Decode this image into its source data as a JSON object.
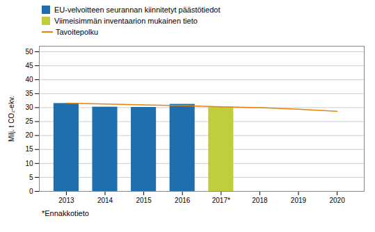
{
  "chart_data": {
    "type": "bar",
    "x": [
      2013,
      2014,
      2015,
      2016,
      2017,
      2018,
      2019,
      2020
    ],
    "series": [
      {
        "name": "EU-velvoitteen seurannan kiinnitetyt päästötiedot",
        "type": "bar",
        "color": "#1F6FAE",
        "values": [
          31.5,
          30.2,
          30.1,
          31.2,
          null,
          null,
          null,
          null
        ]
      },
      {
        "name": "Viimeisimmän inventaarion mukainen tieto",
        "type": "bar",
        "color": "#BFCE3A",
        "values": [
          null,
          null,
          null,
          null,
          30.2,
          null,
          null,
          null
        ]
      },
      {
        "name": "Tavoitepolku",
        "type": "line",
        "color": "#E8800A",
        "values": [
          31.6,
          31.3,
          31.0,
          30.7,
          30.3,
          30.0,
          29.4,
          28.7
        ]
      }
    ],
    "y_label": "Milj. t CO₂-ekv.",
    "xlim": [
      2012.3,
      2020.7
    ],
    "xticks": [
      2013,
      2014,
      2015,
      2016,
      {
        "value": 2017,
        "label": "2017*"
      },
      2018,
      2019,
      2020
    ],
    "ylim": [
      0,
      52
    ],
    "yticks": [
      0,
      5,
      10,
      15,
      20,
      25,
      30,
      35,
      40,
      45,
      50
    ],
    "grid": true,
    "legend": "top",
    "footnote": "*Ennakkotieto"
  }
}
